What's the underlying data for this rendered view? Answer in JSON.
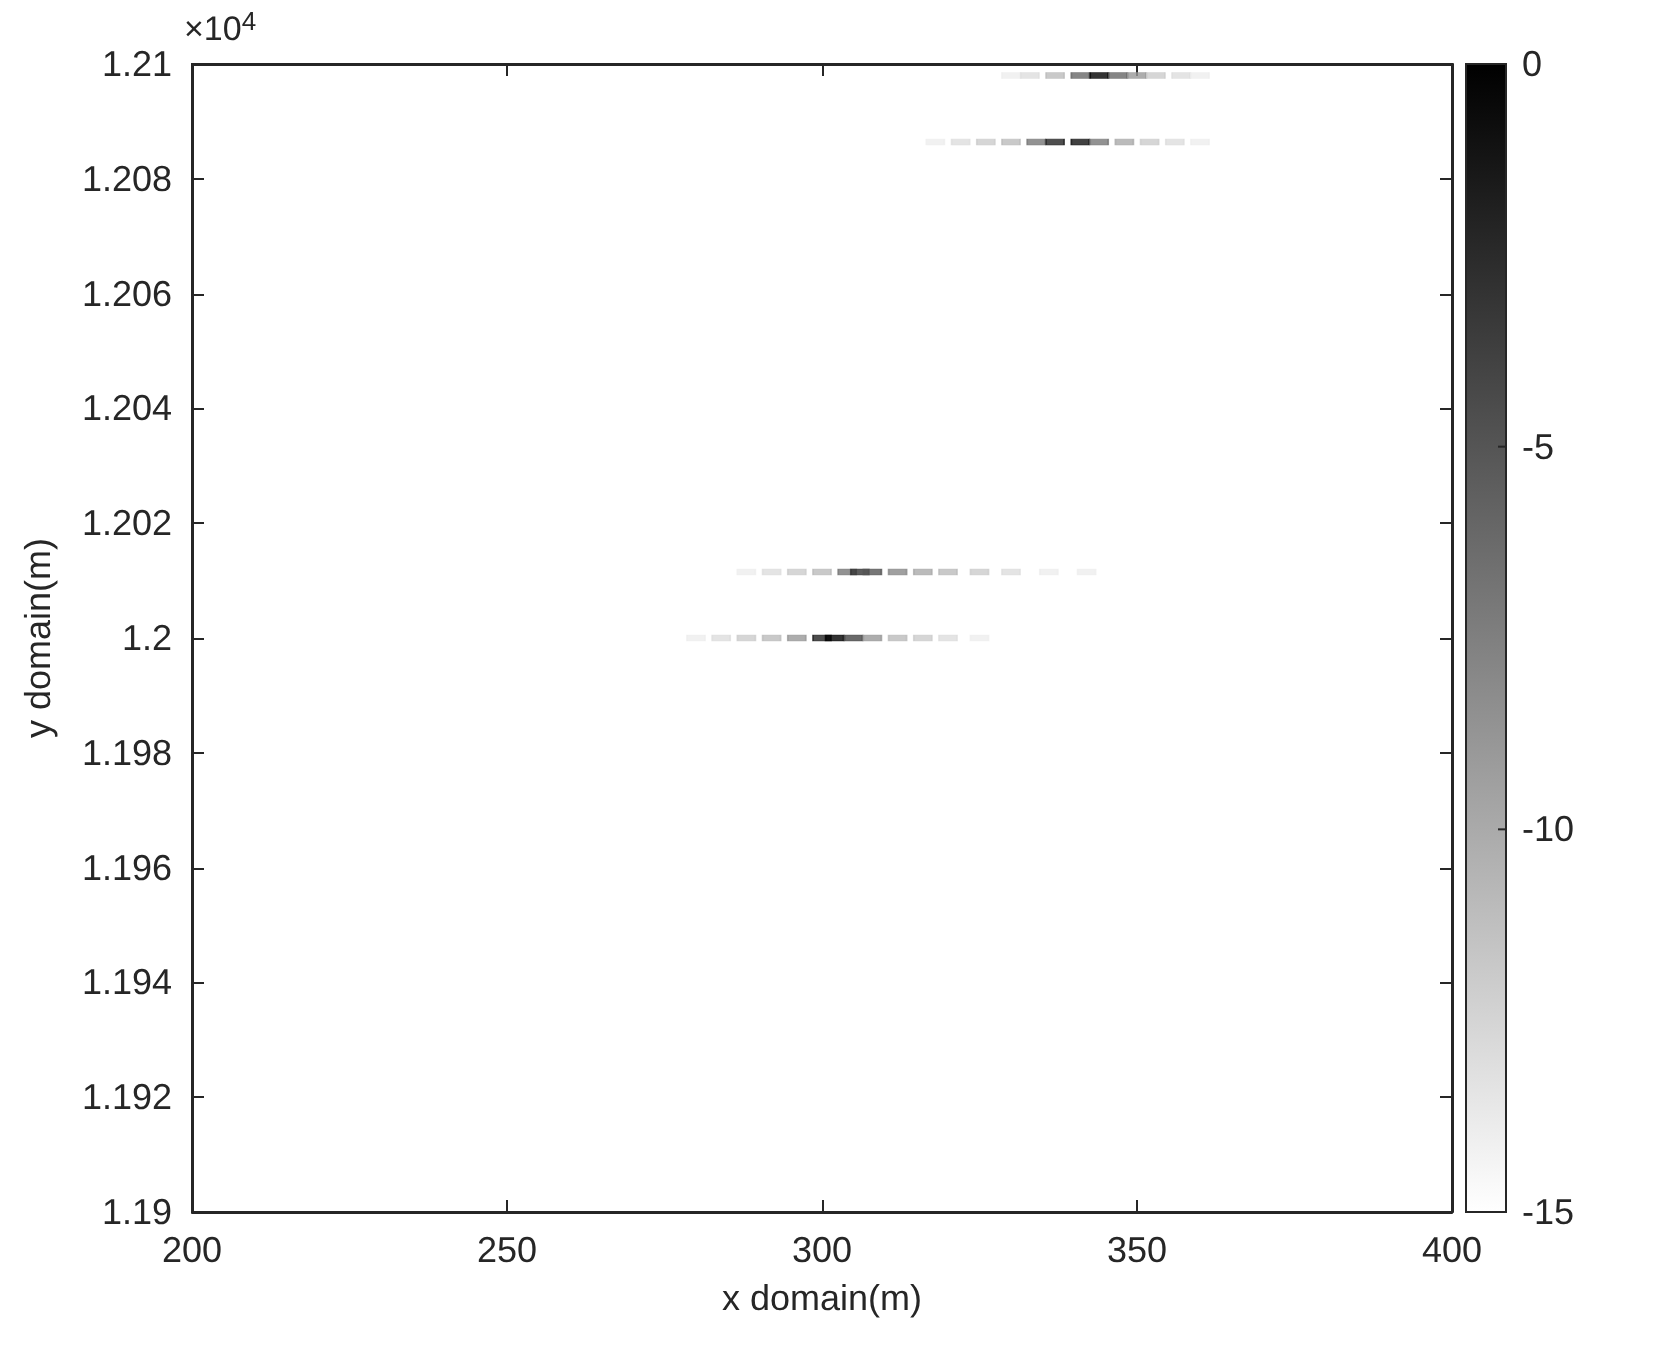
{
  "chart_data": {
    "type": "scatter",
    "xlabel": "x domain(m)",
    "ylabel": "y domain(m)",
    "annotations": [
      "×10$^{4}$"
    ],
    "xlim": [
      200,
      400
    ],
    "xticks": [
      200,
      250,
      300,
      350,
      400
    ],
    "ylim": [
      1.19,
      1.21
    ],
    "yticks": [
      1.19,
      1.192,
      1.194,
      1.196,
      1.198,
      1.2,
      1.202,
      1.204,
      1.206,
      1.208,
      1.21
    ],
    "clim": [
      -15,
      0
    ],
    "cticks": [
      0,
      -5,
      -10,
      -15
    ],
    "grid": false,
    "marker": "square",
    "series": [
      {
        "x": [
          330,
          333,
          337,
          341,
          344,
          347,
          350,
          353,
          357,
          360
        ],
        "values": [
          1.2098,
          1.2098,
          1.2098,
          1.2098,
          1.2098,
          1.2098,
          1.2098,
          1.2098,
          1.2098,
          1.2098
        ],
        "cvalues": [
          -14,
          -13,
          -11,
          -6,
          0,
          -6,
          -9,
          -12,
          -13,
          -14
        ],
        "colors": [
          "#eeeeee",
          "#dddddd",
          "#bbbbbb",
          "#666666",
          "#000000",
          "#666666",
          "#999999",
          "#cccccc",
          "#dddddd",
          "#eeeeee"
        ]
      },
      {
        "x": [
          318,
          322,
          326,
          330,
          334,
          337,
          341,
          344,
          348,
          352,
          356,
          360
        ],
        "values": [
          1.20864,
          1.20864,
          1.20864,
          1.20864,
          1.20864,
          1.20864,
          1.20864,
          1.20864,
          1.20864,
          1.20864,
          1.20864,
          1.20864
        ],
        "cvalues": [
          -14,
          -13,
          -12,
          -11,
          -7,
          -2,
          -1,
          -7,
          -10,
          -12,
          -13,
          -14
        ],
        "colors": [
          "#eeeeee",
          "#dddddd",
          "#cccccc",
          "#bbbbbb",
          "#777777",
          "#222222",
          "#111111",
          "#777777",
          "#aaaaaa",
          "#cccccc",
          "#dddddd",
          "#eeeeee"
        ]
      },
      {
        "x": [
          288,
          292,
          296,
          300,
          304,
          306,
          308,
          312,
          316,
          320,
          325,
          330,
          336,
          342
        ],
        "values": [
          1.20115,
          1.20115,
          1.20115,
          1.20115,
          1.20115,
          1.20115,
          1.20115,
          1.20115,
          1.20115,
          1.20115,
          1.20115,
          1.20115,
          1.20115,
          1.20115
        ],
        "cvalues": [
          -14,
          -13,
          -12,
          -11,
          -7,
          -3,
          -5,
          -8,
          -10,
          -11,
          -12,
          -13,
          -14,
          -14
        ],
        "colors": [
          "#eeeeee",
          "#dddddd",
          "#cccccc",
          "#bbbbbb",
          "#777777",
          "#333333",
          "#555555",
          "#888888",
          "#aaaaaa",
          "#bbbbbb",
          "#cccccc",
          "#dddddd",
          "#eeeeee",
          "#eeeeee"
        ]
      },
      {
        "x": [
          280,
          284,
          288,
          292,
          296,
          300,
          302,
          305,
          308,
          312,
          316,
          320,
          325
        ],
        "values": [
          1.2,
          1.2,
          1.2,
          1.2,
          1.2,
          1.2,
          1.2,
          1.2,
          1.2,
          1.2,
          1.2,
          1.2,
          1.2
        ],
        "cvalues": [
          -14,
          -13,
          -12,
          -11,
          -9,
          -2,
          0,
          -4,
          -9,
          -11,
          -12,
          -13,
          -14
        ],
        "colors": [
          "#eeeeee",
          "#dddddd",
          "#cccccc",
          "#bbbbbb",
          "#999999",
          "#222222",
          "#000000",
          "#444444",
          "#999999",
          "#bbbbbb",
          "#cccccc",
          "#dddddd",
          "#eeeeee"
        ]
      }
    ]
  }
}
